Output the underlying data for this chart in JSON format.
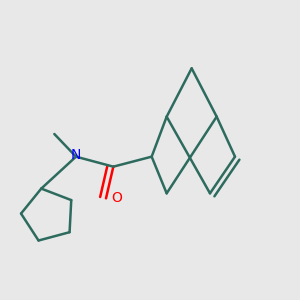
{
  "background_color": "#e8e8e8",
  "bond_color": "#2d6b5e",
  "N_color": "#0000ff",
  "O_color": "#ff0000",
  "line_width": 1.8,
  "figsize": [
    3.0,
    3.0
  ],
  "dpi": 100
}
